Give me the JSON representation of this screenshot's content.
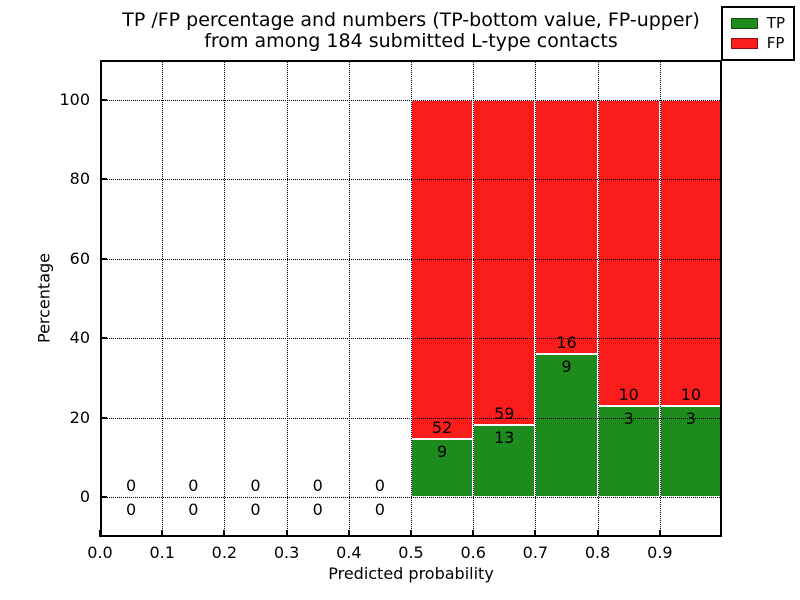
{
  "figure": {
    "title_line1": "TP /FP percentage and numbers (TP-bottom value, FP-upper)",
    "title_line2": "from among 184 submitted L-type contacts",
    "xlabel": "Predicted probability",
    "ylabel": "Percentage"
  },
  "legend": {
    "position": "upper right",
    "items": [
      {
        "label": "TP",
        "color": "#1e8b1e"
      },
      {
        "label": "FP",
        "color": "#fb1c1c"
      }
    ]
  },
  "chart_data": {
    "type": "bar",
    "stacked": true,
    "title": "TP /FP percentage and numbers (TP-bottom value, FP-upper)\nfrom among 184 submitted L-type contacts",
    "xlabel": "Predicted probability",
    "ylabel": "Percentage",
    "xlim": [
      0.0,
      1.0
    ],
    "ylim": [
      -10,
      110
    ],
    "xticks": [
      "0.0",
      "0.1",
      "0.2",
      "0.3",
      "0.4",
      "0.5",
      "0.6",
      "0.7",
      "0.8",
      "0.9"
    ],
    "yticks": [
      0,
      20,
      40,
      60,
      80,
      100
    ],
    "grid": true,
    "grid_style": "dotted",
    "legend_position": "upper right",
    "total_contacts": 184,
    "series": [
      {
        "name": "TP",
        "color": "#1e8b1e",
        "label_position": "bottom"
      },
      {
        "name": "FP",
        "color": "#fb1c1c",
        "label_position": "upper"
      }
    ],
    "bins": [
      {
        "x_start": 0.0,
        "x_end": 0.1,
        "tp_count": 0,
        "fp_count": 0,
        "tp_percent": 0,
        "fp_percent": 0
      },
      {
        "x_start": 0.1,
        "x_end": 0.2,
        "tp_count": 0,
        "fp_count": 0,
        "tp_percent": 0,
        "fp_percent": 0
      },
      {
        "x_start": 0.2,
        "x_end": 0.3,
        "tp_count": 0,
        "fp_count": 0,
        "tp_percent": 0,
        "fp_percent": 0
      },
      {
        "x_start": 0.3,
        "x_end": 0.4,
        "tp_count": 0,
        "fp_count": 0,
        "tp_percent": 0,
        "fp_percent": 0
      },
      {
        "x_start": 0.4,
        "x_end": 0.5,
        "tp_count": 0,
        "fp_count": 0,
        "tp_percent": 0,
        "fp_percent": 0
      },
      {
        "x_start": 0.5,
        "x_end": 0.6,
        "tp_count": 9,
        "fp_count": 52,
        "tp_percent": 14.75,
        "fp_percent": 85.25
      },
      {
        "x_start": 0.6,
        "x_end": 0.7,
        "tp_count": 13,
        "fp_count": 59,
        "tp_percent": 18.06,
        "fp_percent": 81.94
      },
      {
        "x_start": 0.7,
        "x_end": 0.8,
        "tp_count": 9,
        "fp_count": 16,
        "tp_percent": 36.0,
        "fp_percent": 64.0
      },
      {
        "x_start": 0.8,
        "x_end": 0.9,
        "tp_count": 3,
        "fp_count": 10,
        "tp_percent": 23.08,
        "fp_percent": 76.92
      },
      {
        "x_start": 0.9,
        "x_end": 1.0,
        "tp_count": 3,
        "fp_count": 10,
        "tp_percent": 23.08,
        "fp_percent": 76.92
      }
    ]
  }
}
